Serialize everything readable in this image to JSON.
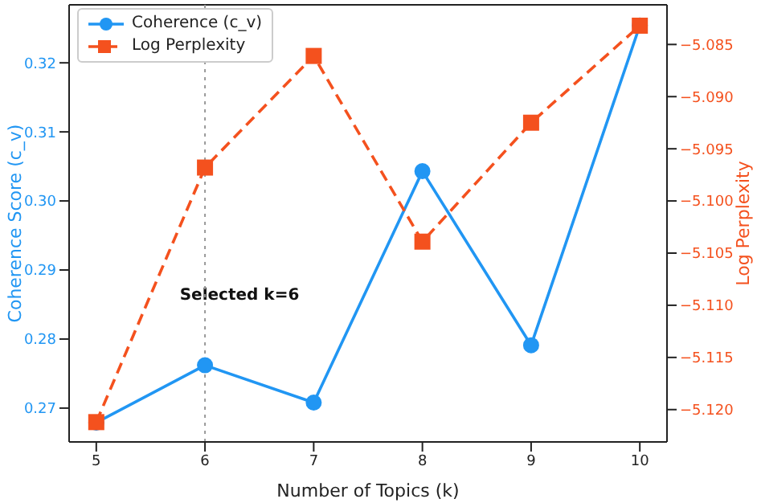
{
  "chart_data": {
    "type": "line",
    "xlabel": "Number of Topics (k)",
    "ylabel": "Coherence Score (c_v)",
    "y2label": "Log Perplexity",
    "x": [
      5,
      6,
      7,
      8,
      9,
      10
    ],
    "series": [
      {
        "name": "Coherence (c_v)",
        "color": "#2196f3",
        "values": [
          0.2679,
          0.2762,
          0.2708,
          0.3043,
          0.2791,
          0.3254
        ],
        "marker": "circle",
        "line_style": "solid"
      },
      {
        "name": "Log Perplexity",
        "color": "#f4511e",
        "values": [
          -5.1212,
          -5.0968,
          -5.0861,
          -5.1039,
          -5.0925,
          -5.0832
        ],
        "axis": "y2",
        "marker": "square",
        "line_style": "dashed"
      }
    ],
    "xlim": [
      4.75,
      10.25
    ],
    "xticks": [
      5,
      6,
      7,
      8,
      9,
      10
    ],
    "ylim": [
      0.2651,
      0.3284
    ],
    "yticks": [
      {
        "value": 0.27,
        "label": "0.27"
      },
      {
        "value": 0.28,
        "label": "0.28"
      },
      {
        "value": 0.29,
        "label": "0.29"
      },
      {
        "value": 0.3,
        "label": "0.30"
      },
      {
        "value": 0.31,
        "label": "0.31"
      },
      {
        "value": 0.32,
        "label": "0.32"
      }
    ],
    "y2lim": [
      -5.1231,
      -5.0812
    ],
    "y2ticks": [
      {
        "value": -5.12,
        "label": "−5.120"
      },
      {
        "value": -5.115,
        "label": "−5.115"
      },
      {
        "value": -5.11,
        "label": "−5.110"
      },
      {
        "value": -5.105,
        "label": "−5.105"
      },
      {
        "value": -5.1,
        "label": "−5.100"
      },
      {
        "value": -5.095,
        "label": "−5.095"
      },
      {
        "value": -5.09,
        "label": "−5.090"
      },
      {
        "value": -5.085,
        "label": "−5.085"
      }
    ],
    "ref_lines": [
      {
        "axis": "x",
        "value": 6,
        "color": "#999999",
        "line_style": "dotted"
      }
    ],
    "annotations": [
      "Selected k=6"
    ],
    "legend": "top left"
  }
}
